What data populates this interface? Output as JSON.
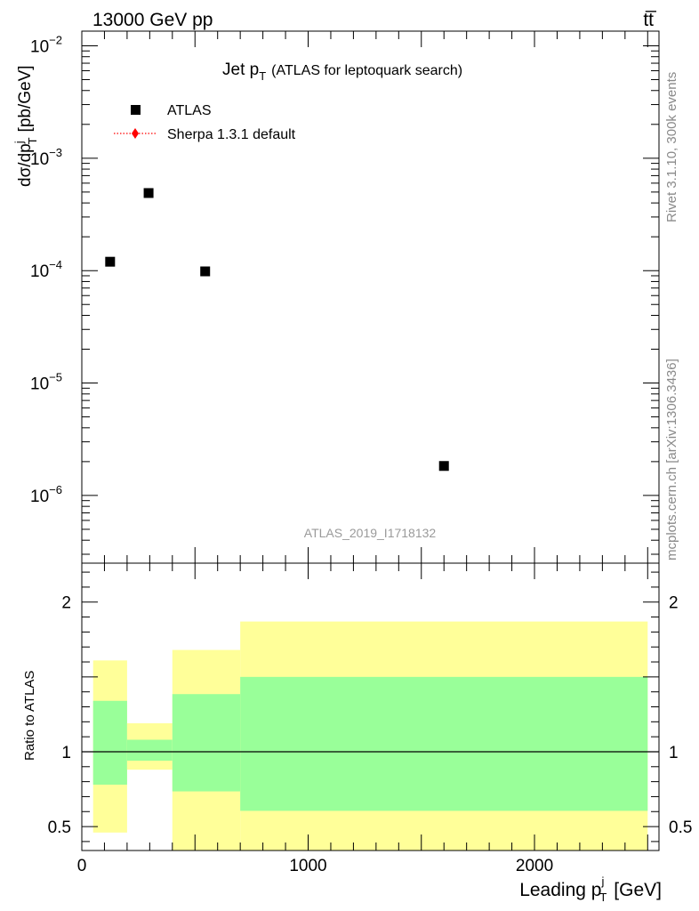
{
  "header": {
    "left": "13000 GeV pp",
    "right": "tt̅"
  },
  "side": {
    "rivet": "Rivet 3.1.10,  300k events",
    "mcplots": "mcplots.cern.ch [arXiv:1306.3436]"
  },
  "plot_title": {
    "main": "Jet p",
    "sub": "T",
    "rest": "(ATLAS for leptoquark search)"
  },
  "watermark": "ATLAS_2019_I1718132",
  "legend": [
    {
      "label": "ATLAS",
      "marker": "square",
      "color": "#000000"
    },
    {
      "label": "Sherpa 1.3.1 default",
      "marker": "diamond-dotted",
      "color": "#ff0000"
    }
  ],
  "axis_text": {
    "ylabel_main": "dσ/dp",
    "ylabel_sup": "j",
    "ylabel_sub": "T",
    "ylabel_unit": "[pb/GeV]",
    "ratio_ylabel": "Ratio to ATLAS",
    "xlabel_main": "Leading p",
    "xlabel_sup": "j",
    "xlabel_sub": "T",
    "xlabel_unit": "[GeV]"
  },
  "chart_data": {
    "type": "scatter",
    "title": "Jet pT (ATLAS for leptoquark search)",
    "x_ticks": [
      "0",
      "1000",
      "2000"
    ],
    "x_range": [
      0,
      2550
    ],
    "main": {
      "y_scale": "log",
      "y_range": [
        2.5e-07,
        0.0135
      ],
      "y_ticks": [
        {
          "value": 1e-06,
          "base": "10",
          "exp": "−6"
        },
        {
          "value": 1e-05,
          "base": "10",
          "exp": "−5"
        },
        {
          "value": 0.0001,
          "base": "10",
          "exp": "−4"
        },
        {
          "value": 0.001,
          "base": "10",
          "exp": "−3"
        },
        {
          "value": 0.01,
          "base": "10",
          "exp": "−2"
        }
      ],
      "series": [
        {
          "name": "ATLAS",
          "points": [
            {
              "x": 125,
              "y": 0.00012
            },
            {
              "x": 295,
              "y": 0.00049
            },
            {
              "x": 545,
              "y": 9.85e-05
            },
            {
              "x": 1600,
              "y": 1.83e-06
            }
          ]
        }
      ]
    },
    "ratio": {
      "y_range": [
        0.34,
        2.26
      ],
      "y_ticks": [
        "0.5",
        "1",
        "2"
      ],
      "reference": 1,
      "bands": [
        {
          "x0": 50,
          "x1": 200,
          "yellow": [
            0.46,
            1.61
          ],
          "green": [
            0.78,
            1.34
          ]
        },
        {
          "x0": 200,
          "x1": 400,
          "yellow": [
            0.88,
            1.19
          ],
          "green": [
            0.94,
            1.08
          ]
        },
        {
          "x0": 400,
          "x1": 700,
          "yellow": [
            0.34,
            1.68
          ],
          "green": [
            0.735,
            1.385
          ]
        },
        {
          "x0": 700,
          "x1": 2500,
          "yellow": [
            0.34,
            1.87
          ],
          "green": [
            0.605,
            1.5
          ]
        }
      ]
    }
  }
}
